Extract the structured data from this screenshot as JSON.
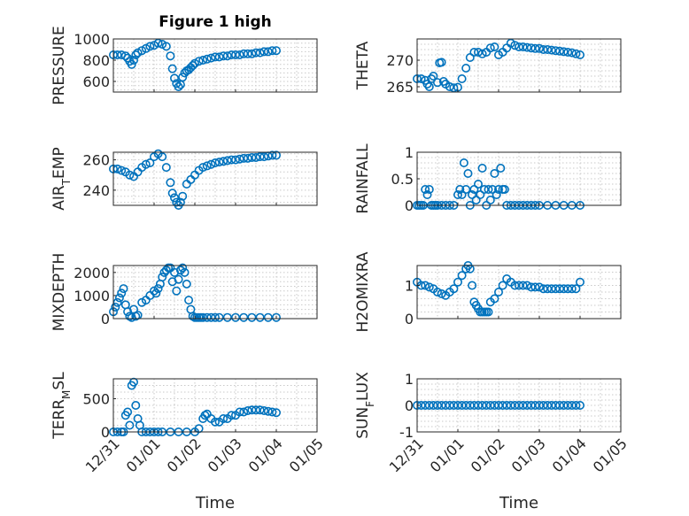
{
  "figure": {
    "title": "Figure 1 high",
    "xlabel": "Time"
  },
  "colors": {
    "marker": "#0072BD",
    "axis": "#262626",
    "grid": "#c9c9c9"
  },
  "x_tick_labels": [
    "12/31",
    "01/01",
    "01/02",
    "01/03",
    "01/04",
    "01/05"
  ],
  "chart_data": [
    {
      "type": "scatter",
      "ylabel": "PRESSURE",
      "ylim": [
        500,
        1000
      ],
      "yticks": [
        600,
        800,
        1000
      ],
      "xlim": [
        0,
        5
      ],
      "x": [
        0.0,
        0.1,
        0.2,
        0.3,
        0.35,
        0.4,
        0.45,
        0.5,
        0.55,
        0.6,
        0.7,
        0.8,
        0.9,
        1.0,
        1.1,
        1.2,
        1.3,
        1.4,
        1.45,
        1.5,
        1.55,
        1.6,
        1.65,
        1.7,
        1.75,
        1.8,
        1.85,
        1.9,
        1.95,
        2.0,
        2.1,
        2.2,
        2.3,
        2.4,
        2.5,
        2.6,
        2.7,
        2.8,
        2.9,
        3.0,
        3.1,
        3.2,
        3.3,
        3.4,
        3.5,
        3.6,
        3.7,
        3.8,
        3.9,
        4.0
      ],
      "y": [
        850,
        850,
        850,
        840,
        820,
        790,
        760,
        800,
        850,
        870,
        890,
        910,
        930,
        940,
        960,
        950,
        930,
        840,
        720,
        630,
        580,
        550,
        570,
        640,
        680,
        700,
        710,
        730,
        750,
        770,
        790,
        800,
        810,
        820,
        830,
        830,
        840,
        840,
        850,
        850,
        850,
        860,
        860,
        860,
        870,
        870,
        880,
        880,
        890,
        890
      ]
    },
    {
      "type": "scatter",
      "ylabel": "THETA",
      "ylim": [
        264,
        274
      ],
      "yticks": [
        265,
        270
      ],
      "xlim": [
        0,
        5
      ],
      "x": [
        0.0,
        0.1,
        0.2,
        0.25,
        0.3,
        0.35,
        0.4,
        0.5,
        0.55,
        0.6,
        0.65,
        0.7,
        0.8,
        0.9,
        1.0,
        1.1,
        1.2,
        1.3,
        1.4,
        1.5,
        1.6,
        1.7,
        1.8,
        1.9,
        2.0,
        2.1,
        2.2,
        2.3,
        2.4,
        2.5,
        2.6,
        2.7,
        2.8,
        2.9,
        3.0,
        3.1,
        3.2,
        3.3,
        3.4,
        3.5,
        3.6,
        3.7,
        3.8,
        3.9,
        4.0
      ],
      "y": [
        266.5,
        266.5,
        266.2,
        265.5,
        265.0,
        266.5,
        267.0,
        265.8,
        269.5,
        269.6,
        266.0,
        265.5,
        265.0,
        264.8,
        264.9,
        266.5,
        268.5,
        270.5,
        271.5,
        271.5,
        271.2,
        271.5,
        272.3,
        272.5,
        271.0,
        271.5,
        272.3,
        273.2,
        272.8,
        272.5,
        272.5,
        272.4,
        272.3,
        272.2,
        272.2,
        272.0,
        272.0,
        271.9,
        271.8,
        271.7,
        271.6,
        271.5,
        271.4,
        271.2,
        271.0
      ]
    },
    {
      "type": "scatter",
      "ylabel": "AIR_TEMP",
      "ylim": [
        230,
        265
      ],
      "yticks": [
        240,
        260
      ],
      "xlim": [
        0,
        5
      ],
      "x": [
        0.0,
        0.1,
        0.2,
        0.3,
        0.4,
        0.5,
        0.6,
        0.7,
        0.8,
        0.9,
        1.0,
        1.1,
        1.2,
        1.3,
        1.4,
        1.45,
        1.5,
        1.55,
        1.6,
        1.65,
        1.7,
        1.8,
        1.9,
        2.0,
        2.1,
        2.2,
        2.3,
        2.4,
        2.5,
        2.6,
        2.7,
        2.8,
        2.9,
        3.0,
        3.1,
        3.2,
        3.3,
        3.4,
        3.5,
        3.6,
        3.7,
        3.8,
        3.9,
        4.0
      ],
      "y": [
        254,
        254,
        253,
        252,
        250,
        249,
        252,
        255,
        257,
        258,
        262,
        264,
        262,
        255,
        245,
        238,
        235,
        232,
        230,
        232,
        236,
        244,
        247,
        250,
        253,
        255,
        256,
        257,
        258,
        258.5,
        259,
        259.5,
        260,
        260,
        260.5,
        261,
        261,
        261.5,
        261.5,
        262,
        262,
        262.5,
        263,
        263
      ]
    },
    {
      "type": "scatter",
      "ylabel": "RAINFALL",
      "ylim": [
        0,
        1
      ],
      "yticks": [
        0,
        0.5,
        1
      ],
      "yticklabels": [
        "0",
        "0.5",
        "1"
      ],
      "xlim": [
        0,
        5
      ],
      "x": [
        0.0,
        0.05,
        0.1,
        0.15,
        0.2,
        0.25,
        0.3,
        0.35,
        0.4,
        0.45,
        0.5,
        0.6,
        0.7,
        0.8,
        0.9,
        1.0,
        1.05,
        1.1,
        1.15,
        1.2,
        1.25,
        1.3,
        1.35,
        1.4,
        1.45,
        1.5,
        1.55,
        1.6,
        1.65,
        1.7,
        1.75,
        1.8,
        1.85,
        1.9,
        1.95,
        2.0,
        2.05,
        2.1,
        2.15,
        2.2,
        2.3,
        2.4,
        2.5,
        2.6,
        2.7,
        2.8,
        2.9,
        3.0,
        3.2,
        3.4,
        3.6,
        3.8,
        4.0
      ],
      "y": [
        0,
        0,
        0,
        0,
        0.3,
        0.2,
        0.3,
        0,
        0,
        0,
        0,
        0,
        0,
        0,
        0,
        0.2,
        0.3,
        0.2,
        0.8,
        0.3,
        0.6,
        0,
        0.2,
        0.3,
        0.1,
        0.4,
        0.2,
        0.7,
        0.3,
        0,
        0.3,
        0.1,
        0.3,
        0.6,
        0.2,
        0.3,
        0.7,
        0.3,
        0.3,
        0,
        0,
        0,
        0,
        0,
        0,
        0,
        0,
        0,
        0,
        0,
        0,
        0,
        0
      ]
    },
    {
      "type": "scatter",
      "ylabel": "MIXDEPTH",
      "ylim": [
        0,
        2300
      ],
      "yticks": [
        0,
        1000,
        2000
      ],
      "xlim": [
        0,
        5
      ],
      "x": [
        0.0,
        0.05,
        0.1,
        0.15,
        0.2,
        0.25,
        0.3,
        0.35,
        0.4,
        0.45,
        0.5,
        0.55,
        0.6,
        0.7,
        0.8,
        0.9,
        1.0,
        1.05,
        1.1,
        1.15,
        1.2,
        1.25,
        1.3,
        1.35,
        1.4,
        1.45,
        1.5,
        1.55,
        1.6,
        1.65,
        1.7,
        1.75,
        1.8,
        1.85,
        1.9,
        1.95,
        2.0,
        2.05,
        2.1,
        2.15,
        2.2,
        2.3,
        2.4,
        2.5,
        2.6,
        2.8,
        3.0,
        3.2,
        3.4,
        3.6,
        3.8,
        4.0
      ],
      "y": [
        300,
        500,
        700,
        900,
        1100,
        1300,
        600,
        300,
        100,
        50,
        400,
        100,
        150,
        700,
        800,
        1000,
        1200,
        1100,
        1300,
        1500,
        1800,
        2000,
        2100,
        2200,
        2200,
        1600,
        2000,
        1200,
        1700,
        2100,
        2200,
        2000,
        1500,
        800,
        400,
        100,
        50,
        50,
        50,
        50,
        50,
        50,
        50,
        50,
        50,
        50,
        50,
        50,
        50,
        50,
        50,
        50
      ]
    },
    {
      "type": "scatter",
      "ylabel": "H2OMIXRA",
      "ylim": [
        0,
        1.6
      ],
      "yticks": [
        0,
        1
      ],
      "xlim": [
        0,
        5
      ],
      "x": [
        0.0,
        0.1,
        0.2,
        0.3,
        0.4,
        0.5,
        0.6,
        0.7,
        0.8,
        0.9,
        1.0,
        1.1,
        1.2,
        1.25,
        1.3,
        1.35,
        1.4,
        1.45,
        1.5,
        1.55,
        1.6,
        1.65,
        1.7,
        1.75,
        1.8,
        1.9,
        2.0,
        2.1,
        2.2,
        2.3,
        2.4,
        2.5,
        2.6,
        2.7,
        2.8,
        2.9,
        3.0,
        3.1,
        3.2,
        3.3,
        3.4,
        3.5,
        3.6,
        3.7,
        3.8,
        3.9,
        4.0
      ],
      "y": [
        1.1,
        1.0,
        1.0,
        0.95,
        0.9,
        0.8,
        0.75,
        0.7,
        0.8,
        0.9,
        1.1,
        1.3,
        1.5,
        1.6,
        1.5,
        1.0,
        0.5,
        0.4,
        0.3,
        0.2,
        0.2,
        0.2,
        0.2,
        0.2,
        0.5,
        0.6,
        0.8,
        1.0,
        1.2,
        1.1,
        1.0,
        1.0,
        1.0,
        1.0,
        0.95,
        0.95,
        0.95,
        0.9,
        0.9,
        0.9,
        0.9,
        0.9,
        0.9,
        0.9,
        0.9,
        0.9,
        1.1
      ]
    },
    {
      "type": "scatter",
      "ylabel": "TERR_MSL",
      "ylim": [
        0,
        800
      ],
      "yticks": [
        0,
        500
      ],
      "xlim": [
        0,
        5
      ],
      "x": [
        0.0,
        0.1,
        0.2,
        0.25,
        0.3,
        0.35,
        0.4,
        0.45,
        0.5,
        0.55,
        0.6,
        0.65,
        0.7,
        0.8,
        0.9,
        1.0,
        1.1,
        1.2,
        1.4,
        1.6,
        1.8,
        2.0,
        2.1,
        2.2,
        2.25,
        2.3,
        2.4,
        2.5,
        2.6,
        2.7,
        2.8,
        2.9,
        3.0,
        3.1,
        3.2,
        3.3,
        3.4,
        3.5,
        3.6,
        3.7,
        3.8,
        3.9,
        4.0
      ],
      "y": [
        0,
        0,
        0,
        0,
        250,
        300,
        100,
        700,
        750,
        400,
        200,
        100,
        0,
        0,
        0,
        0,
        0,
        0,
        0,
        0,
        0,
        0,
        50,
        200,
        250,
        270,
        200,
        150,
        150,
        200,
        200,
        250,
        250,
        300,
        300,
        320,
        330,
        330,
        330,
        320,
        310,
        300,
        290
      ]
    },
    {
      "type": "scatter",
      "ylabel": "SUN_FLUX",
      "ylim": [
        -1,
        1
      ],
      "yticks": [
        -1,
        0,
        1
      ],
      "xlim": [
        0,
        5
      ],
      "x": [
        0.0,
        0.1,
        0.2,
        0.3,
        0.4,
        0.5,
        0.6,
        0.7,
        0.8,
        0.9,
        1.0,
        1.1,
        1.2,
        1.3,
        1.4,
        1.5,
        1.6,
        1.7,
        1.8,
        1.9,
        2.0,
        2.1,
        2.2,
        2.3,
        2.4,
        2.5,
        2.6,
        2.7,
        2.8,
        2.9,
        3.0,
        3.1,
        3.2,
        3.3,
        3.4,
        3.5,
        3.6,
        3.7,
        3.8,
        3.9,
        4.0
      ],
      "y": [
        0,
        0,
        0,
        0,
        0,
        0,
        0,
        0,
        0,
        0,
        0,
        0,
        0,
        0,
        0,
        0,
        0,
        0,
        0,
        0,
        0,
        0,
        0,
        0,
        0,
        0,
        0,
        0,
        0,
        0,
        0,
        0,
        0,
        0,
        0,
        0,
        0,
        0,
        0,
        0,
        0
      ]
    }
  ]
}
